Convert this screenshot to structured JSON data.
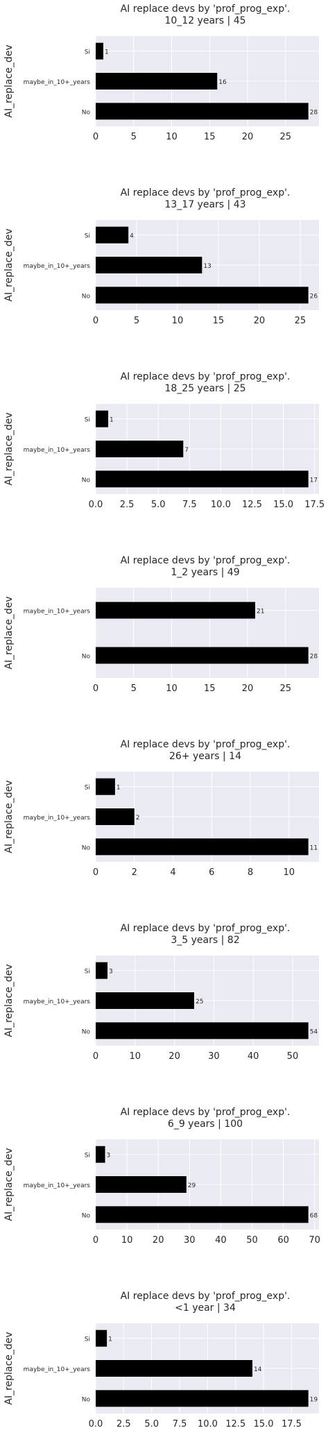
{
  "chart_data": [
    {
      "type": "bar",
      "orientation": "horizontal",
      "title_line1": "AI replace devs by 'prof_prog_exp'.",
      "title_line2": "10_12 years | 45",
      "ylabel": "AI_replace_dev",
      "xlabel": "",
      "categories": [
        "Si",
        "maybe_in_10+_years",
        "No"
      ],
      "values": [
        1,
        16,
        28
      ],
      "data_labels": [
        "1",
        "16",
        "28"
      ],
      "xlim": [
        0,
        29.4
      ],
      "xticks": [
        "0",
        "5",
        "10",
        "15",
        "20",
        "25"
      ],
      "xtick_values": [
        0,
        5,
        10,
        15,
        20,
        25
      ],
      "bar_color": "#000000",
      "grid": true
    },
    {
      "type": "bar",
      "orientation": "horizontal",
      "title_line1": "AI replace devs by 'prof_prog_exp'.",
      "title_line2": "13_17 years | 43",
      "ylabel": "AI_replace_dev",
      "xlabel": "",
      "categories": [
        "Si",
        "maybe_in_10+_years",
        "No"
      ],
      "values": [
        4,
        13,
        26
      ],
      "data_labels": [
        "4",
        "13",
        "26"
      ],
      "xlim": [
        0,
        27.3
      ],
      "xticks": [
        "0",
        "5",
        "10",
        "15",
        "20",
        "25"
      ],
      "xtick_values": [
        0,
        5,
        10,
        15,
        20,
        25
      ],
      "bar_color": "#000000",
      "grid": true
    },
    {
      "type": "bar",
      "orientation": "horizontal",
      "title_line1": "AI replace devs by 'prof_prog_exp'.",
      "title_line2": "18_25 years | 25",
      "ylabel": "AI_replace_dev",
      "xlabel": "",
      "categories": [
        "Si",
        "maybe_in_10+_years",
        "No"
      ],
      "values": [
        1,
        7,
        17
      ],
      "data_labels": [
        "1",
        "7",
        "17"
      ],
      "xlim": [
        0,
        17.85
      ],
      "xticks": [
        "0.0",
        "2.5",
        "5.0",
        "7.5",
        "10.0",
        "12.5",
        "15.0",
        "17.5"
      ],
      "xtick_values": [
        0,
        2.5,
        5,
        7.5,
        10,
        12.5,
        15,
        17.5
      ],
      "bar_color": "#000000",
      "grid": true
    },
    {
      "type": "bar",
      "orientation": "horizontal",
      "title_line1": "AI replace devs by 'prof_prog_exp'.",
      "title_line2": "1_2 years | 49",
      "ylabel": "AI_replace_dev",
      "xlabel": "",
      "categories": [
        "maybe_in_10+_years",
        "No"
      ],
      "values": [
        21,
        28
      ],
      "data_labels": [
        "21",
        "28"
      ],
      "xlim": [
        0,
        29.4
      ],
      "xticks": [
        "0",
        "5",
        "10",
        "15",
        "20",
        "25"
      ],
      "xtick_values": [
        0,
        5,
        10,
        15,
        20,
        25
      ],
      "bar_color": "#000000",
      "grid": true
    },
    {
      "type": "bar",
      "orientation": "horizontal",
      "title_line1": "AI replace devs by 'prof_prog_exp'.",
      "title_line2": "26+ years | 14",
      "ylabel": "AI_replace_dev",
      "xlabel": "",
      "categories": [
        "Si",
        "maybe_in_10+_years",
        "No"
      ],
      "values": [
        1,
        2,
        11
      ],
      "data_labels": [
        "1",
        "2",
        "11"
      ],
      "xlim": [
        0,
        11.55
      ],
      "xticks": [
        "0",
        "2",
        "4",
        "6",
        "8",
        "10"
      ],
      "xtick_values": [
        0,
        2,
        4,
        6,
        8,
        10
      ],
      "bar_color": "#000000",
      "grid": true
    },
    {
      "type": "bar",
      "orientation": "horizontal",
      "title_line1": "AI replace devs by 'prof_prog_exp'.",
      "title_line2": "3_5 years | 82",
      "ylabel": "AI_replace_dev",
      "xlabel": "",
      "categories": [
        "Si",
        "maybe_in_10+_years",
        "No"
      ],
      "values": [
        3,
        25,
        54
      ],
      "data_labels": [
        "3",
        "25",
        "54"
      ],
      "xlim": [
        0,
        56.7
      ],
      "xticks": [
        "0",
        "10",
        "20",
        "30",
        "40",
        "50"
      ],
      "xtick_values": [
        0,
        10,
        20,
        30,
        40,
        50
      ],
      "bar_color": "#000000",
      "grid": true
    },
    {
      "type": "bar",
      "orientation": "horizontal",
      "title_line1": "AI replace devs by 'prof_prog_exp'.",
      "title_line2": "6_9 years | 100",
      "ylabel": "AI_replace_dev",
      "xlabel": "",
      "categories": [
        "Si",
        "maybe_in_10+_years",
        "No"
      ],
      "values": [
        3,
        29,
        68
      ],
      "data_labels": [
        "3",
        "29",
        "68"
      ],
      "xlim": [
        0,
        71.4
      ],
      "xticks": [
        "0",
        "10",
        "20",
        "30",
        "40",
        "50",
        "60",
        "70"
      ],
      "xtick_values": [
        0,
        10,
        20,
        30,
        40,
        50,
        60,
        70
      ],
      "bar_color": "#000000",
      "grid": true
    },
    {
      "type": "bar",
      "orientation": "horizontal",
      "title_line1": "AI replace devs by 'prof_prog_exp'.",
      "title_line2": "<1 year | 34",
      "ylabel": "AI_replace_dev",
      "xlabel": "",
      "categories": [
        "Si",
        "maybe_in_10+_years",
        "No"
      ],
      "values": [
        1,
        14,
        19
      ],
      "data_labels": [
        "1",
        "14",
        "19"
      ],
      "xlim": [
        0,
        19.95
      ],
      "xticks": [
        "0.0",
        "2.5",
        "5.0",
        "7.5",
        "10.0",
        "12.5",
        "15.0",
        "17.5"
      ],
      "xtick_values": [
        0,
        2.5,
        5,
        7.5,
        10,
        12.5,
        15,
        17.5
      ],
      "bar_color": "#000000",
      "grid": true
    }
  ],
  "style": {
    "axes_background": "#eaeaf2",
    "grid_color": "#ffffff",
    "text_color": "#262626"
  }
}
